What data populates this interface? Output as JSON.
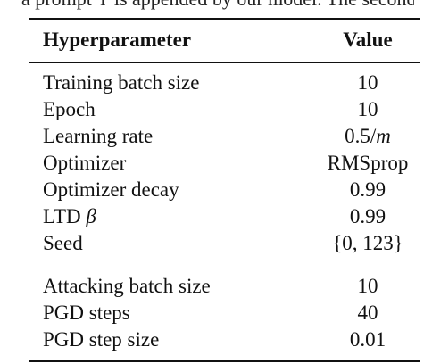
{
  "caption_fragment": "a prompt 'i' is appended by our model. The second section is t",
  "table": {
    "headers": {
      "param": "Hyperparameter",
      "value": "Value"
    },
    "group1": [
      {
        "param": "Training batch size",
        "value": "10"
      },
      {
        "param": "Epoch",
        "value": "10"
      },
      {
        "param": "Learning rate",
        "value_num": "0.5/",
        "value_var": "m"
      },
      {
        "param": "Optimizer",
        "value": "RMSprop"
      },
      {
        "param": "Optimizer decay",
        "value": "0.99"
      },
      {
        "param_text": "LTD ",
        "param_symbol": "β",
        "value": "0.99"
      },
      {
        "param": "Seed",
        "value": "{0, 123}"
      }
    ],
    "group2": [
      {
        "param": "Attacking batch size",
        "value": "10"
      },
      {
        "param": "PGD steps",
        "value": "40"
      },
      {
        "param": "PGD step size",
        "value": "0.01"
      }
    ]
  }
}
